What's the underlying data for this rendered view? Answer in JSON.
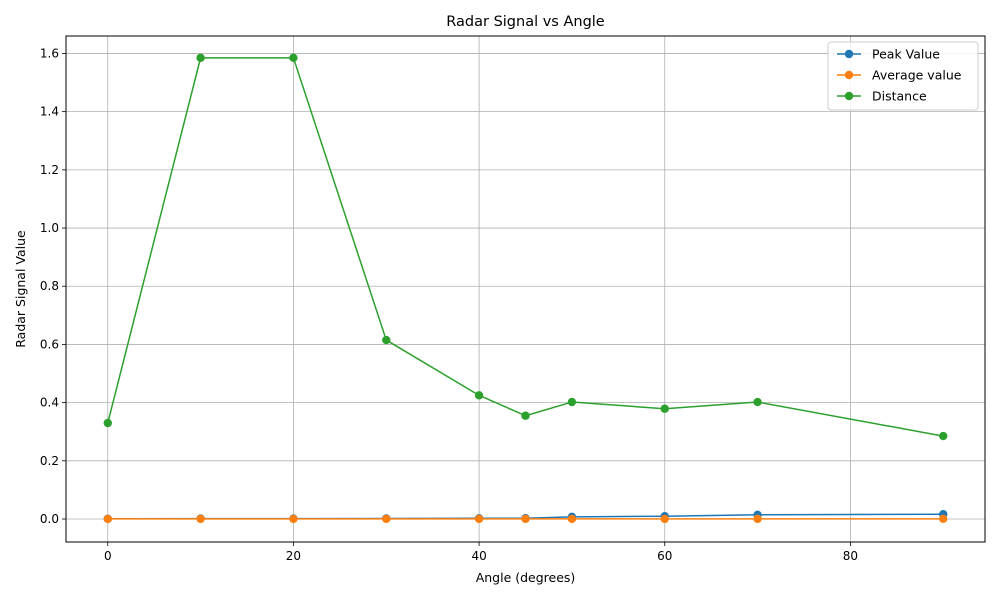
{
  "chart_data": {
    "type": "line",
    "title": "Radar Signal vs Angle",
    "xlabel": "Angle (degrees)",
    "ylabel": "Radar Signal Value",
    "x": [
      0,
      10,
      20,
      30,
      40,
      45,
      50,
      60,
      70,
      90
    ],
    "xlim": [
      -4.5,
      94.5
    ],
    "ylim": [
      -0.079,
      1.66
    ],
    "xticks": [
      0,
      20,
      40,
      60,
      80
    ],
    "yticks": [
      0.0,
      0.2,
      0.4,
      0.6,
      0.8,
      1.0,
      1.2,
      1.4,
      1.6
    ],
    "grid": true,
    "legend_position": "top-right",
    "series": [
      {
        "name": "Peak Value",
        "color": "#1f77b4",
        "values": [
          0.0008,
          0.0015,
          0.0015,
          0.0018,
          0.0025,
          0.0028,
          0.0075,
          0.0095,
          0.0145,
          0.0165
        ]
      },
      {
        "name": "Average value",
        "color": "#ff7f0e",
        "values": [
          0.0003,
          0.0003,
          0.0003,
          0.0003,
          0.0003,
          0.0003,
          0.0004,
          0.0004,
          0.0005,
          0.0006
        ]
      },
      {
        "name": "Distance",
        "color": "#2ca02c",
        "values": [
          0.33,
          1.585,
          1.585,
          0.615,
          0.425,
          0.355,
          0.402,
          0.379,
          0.402,
          0.285
        ]
      }
    ]
  }
}
